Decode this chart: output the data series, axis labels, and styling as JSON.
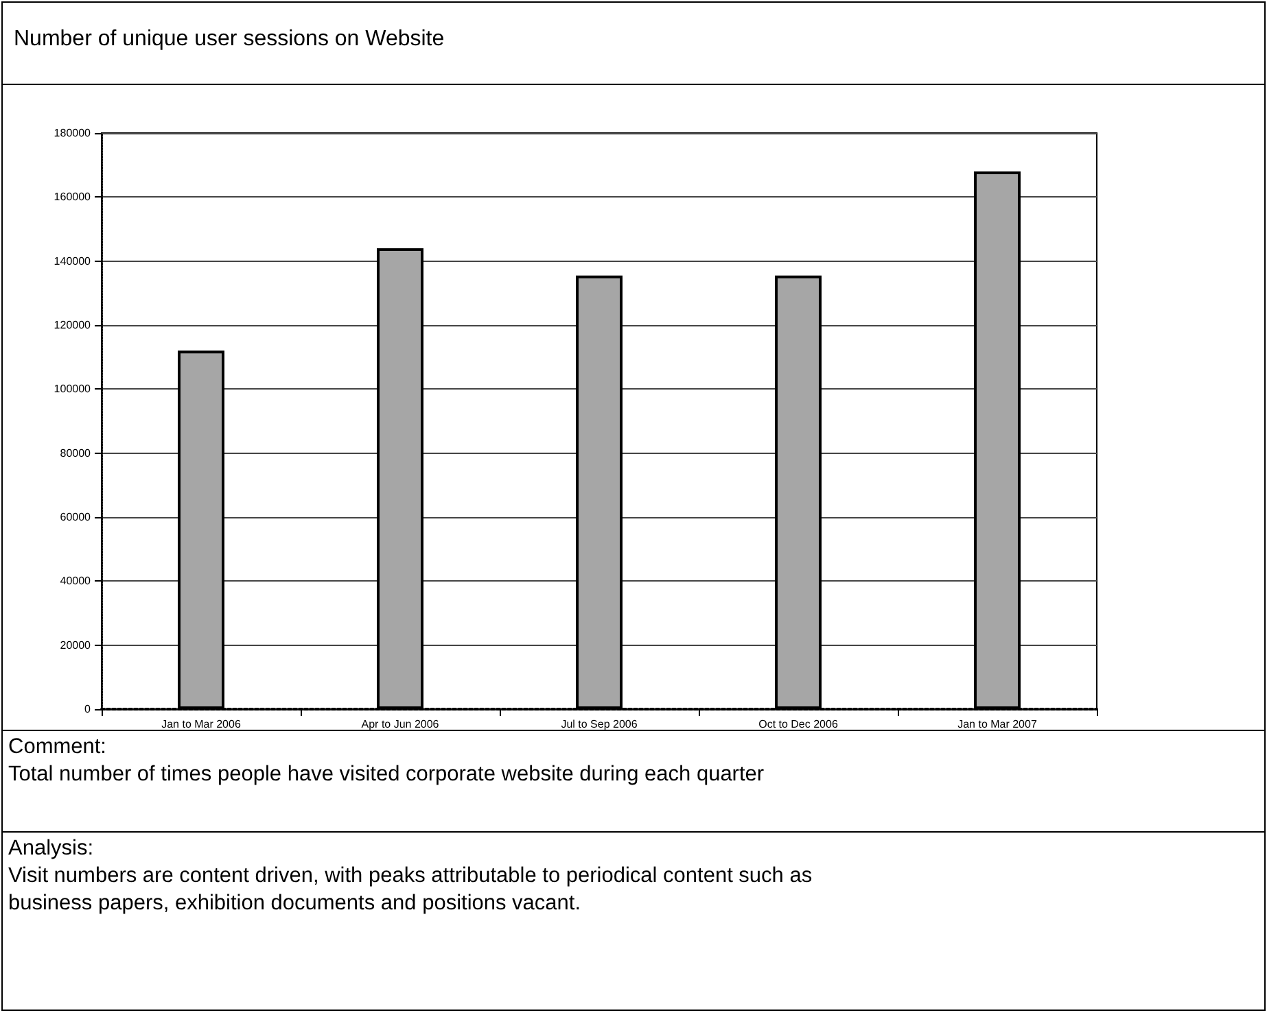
{
  "chart_data": {
    "type": "bar",
    "title": "Number of unique user sessions on Website",
    "categories": [
      "Jan to Mar 2006",
      "Apr to Jun 2006",
      "Jul to Sep 2006",
      "Oct to Dec 2006",
      "Jan to Mar 2007"
    ],
    "values": [
      112000,
      144000,
      135500,
      135500,
      168000
    ],
    "color": "#a6a6a6",
    "ylim": [
      0,
      180000
    ],
    "yticks": [
      0,
      20000,
      40000,
      60000,
      80000,
      100000,
      120000,
      140000,
      160000,
      180000
    ],
    "grid": "y",
    "annotations": [
      "Comment:",
      "Total number of times people have visited corporate website during each quarter",
      "Analysis:",
      "Visit numbers are content driven, with peaks attributable to periodical content such as business papers, exhibition documents and positions vacant."
    ]
  }
}
